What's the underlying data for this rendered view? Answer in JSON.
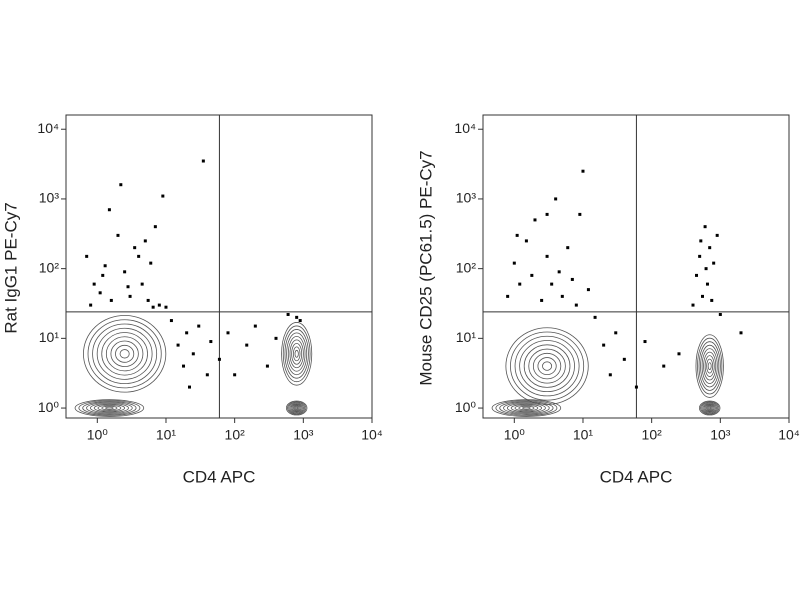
{
  "chart_data": [
    {
      "type": "scatter",
      "x_label": "CD4 APC",
      "y_label": "Rat IgG1 PE-Cy7",
      "log_x": true,
      "log_y": true,
      "xlim": [
        0.35,
        10000
      ],
      "ylim": [
        0.72,
        16000
      ],
      "xticks": [
        {
          "value": 1,
          "label": "10⁰"
        },
        {
          "value": 10,
          "label": "10¹"
        },
        {
          "value": 100,
          "label": "10²"
        },
        {
          "value": 1000,
          "label": "10³"
        },
        {
          "value": 10000,
          "label": "10⁴"
        }
      ],
      "yticks": [
        {
          "value": 1,
          "label": "10⁰"
        },
        {
          "value": 10,
          "label": "10¹"
        },
        {
          "value": 100,
          "label": "10²"
        },
        {
          "value": 1000,
          "label": "10³"
        },
        {
          "value": 10000,
          "label": "10⁴"
        }
      ],
      "gate_x": 60,
      "gate_y": 24,
      "color": "#000000",
      "contour_color": "#555555",
      "populations": [
        {
          "x": 2.5,
          "y": 6,
          "sx": 0.6,
          "sy": 0.55
        },
        {
          "x": 1.5,
          "y": 1,
          "sx": 0.5,
          "sy": 0.12
        },
        {
          "x": 800,
          "y": 6,
          "sx": 0.22,
          "sy": 0.45
        },
        {
          "x": 800,
          "y": 1,
          "sx": 0.15,
          "sy": 0.1
        }
      ],
      "x": [
        0.8,
        0.9,
        1.1,
        1.3,
        1.5,
        1.6,
        2,
        2.2,
        2.5,
        3,
        3.5,
        4,
        4.5,
        5,
        5.5,
        6,
        7,
        8,
        9,
        10,
        35,
        12,
        15,
        18,
        20,
        22,
        25,
        30,
        40,
        45,
        60,
        80,
        100,
        150,
        200,
        300,
        400,
        600,
        800,
        900,
        1.2,
        2.8,
        6.5,
        0.7
      ],
      "y": [
        30,
        60,
        45,
        110,
        700,
        35,
        300,
        1600,
        90,
        40,
        200,
        150,
        60,
        250,
        35,
        120,
        400,
        30,
        1100,
        28,
        3500,
        18,
        8,
        4,
        12,
        2,
        6,
        15,
        3,
        9,
        5,
        12,
        3,
        8,
        15,
        4,
        10,
        22,
        20,
        18,
        80,
        55,
        28,
        150
      ]
    },
    {
      "type": "scatter",
      "x_label": "CD4 APC",
      "y_label": "Mouse CD25 (PC61.5) PE-Cy7",
      "log_x": true,
      "log_y": true,
      "xlim": [
        0.35,
        10000
      ],
      "ylim": [
        0.72,
        16000
      ],
      "xticks": [
        {
          "value": 1,
          "label": "10⁰"
        },
        {
          "value": 10,
          "label": "10¹"
        },
        {
          "value": 100,
          "label": "10²"
        },
        {
          "value": 1000,
          "label": "10³"
        },
        {
          "value": 10000,
          "label": "10⁴"
        }
      ],
      "yticks": [
        {
          "value": 1,
          "label": "10⁰"
        },
        {
          "value": 10,
          "label": "10¹"
        },
        {
          "value": 100,
          "label": "10²"
        },
        {
          "value": 1000,
          "label": "10³"
        },
        {
          "value": 10000,
          "label": "10⁴"
        }
      ],
      "gate_x": 60,
      "gate_y": 24,
      "color": "#000000",
      "contour_color": "#555555",
      "populations": [
        {
          "x": 3,
          "y": 4,
          "sx": 0.6,
          "sy": 0.55
        },
        {
          "x": 1.5,
          "y": 1,
          "sx": 0.5,
          "sy": 0.12
        },
        {
          "x": 700,
          "y": 4,
          "sx": 0.2,
          "sy": 0.45
        },
        {
          "x": 700,
          "y": 1,
          "sx": 0.15,
          "sy": 0.1
        }
      ],
      "x": [
        0.8,
        1,
        1.2,
        1.5,
        1.8,
        2,
        2.5,
        3,
        3.5,
        4,
        4.5,
        5,
        6,
        7,
        8,
        9,
        10,
        12,
        15,
        20,
        25,
        30,
        40,
        60,
        80,
        150,
        250,
        400,
        450,
        500,
        520,
        550,
        600,
        620,
        650,
        700,
        750,
        800,
        900,
        1000,
        2000,
        3,
        1.1
      ],
      "y": [
        40,
        120,
        60,
        250,
        80,
        500,
        35,
        150,
        60,
        1000,
        90,
        40,
        200,
        70,
        30,
        600,
        2500,
        50,
        20,
        8,
        3,
        12,
        5,
        2,
        9,
        4,
        6,
        30,
        80,
        150,
        250,
        40,
        400,
        100,
        60,
        200,
        35,
        120,
        300,
        22,
        12,
        600,
        300
      ]
    }
  ]
}
